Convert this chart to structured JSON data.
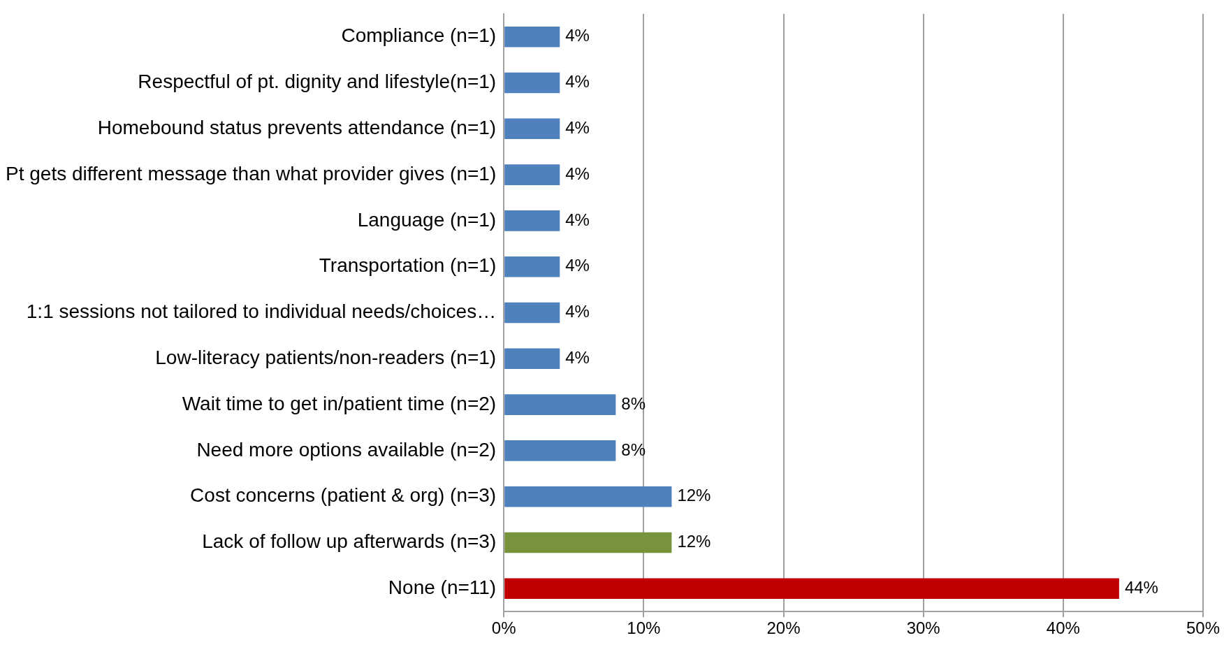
{
  "chart_data": {
    "type": "bar",
    "orientation": "horizontal",
    "categories": [
      "Compliance (n=1)",
      "Respectful of pt. dignity and lifestyle(n=1)",
      "Homebound status prevents attendance (n=1)",
      "Pt gets different message than what provider gives (n=1)",
      "Language (n=1)",
      "Transportation (n=1)",
      "1:1 sessions not tailored to individual needs/choices…",
      "Low-literacy patients/non-readers (n=1)",
      "Wait time to get in/patient time (n=2)",
      "Need more options available (n=2)",
      "Cost concerns (patient & org) (n=3)",
      "Lack of follow up afterwards (n=3)",
      "None (n=11)"
    ],
    "values": [
      4,
      4,
      4,
      4,
      4,
      4,
      4,
      4,
      8,
      8,
      12,
      12,
      44
    ],
    "value_labels": [
      "4%",
      "4%",
      "4%",
      "4%",
      "4%",
      "4%",
      "4%",
      "4%",
      "8%",
      "8%",
      "12%",
      "12%",
      "44%"
    ],
    "colors": [
      "#4f81bd",
      "#4f81bd",
      "#4f81bd",
      "#4f81bd",
      "#4f81bd",
      "#4f81bd",
      "#4f81bd",
      "#4f81bd",
      "#4f81bd",
      "#4f81bd",
      "#4f81bd",
      "#77933c",
      "#c00000"
    ],
    "xlim": [
      0,
      50
    ],
    "xticks": [
      {
        "value": 0,
        "label": "0%"
      },
      {
        "value": 10,
        "label": "10%"
      },
      {
        "value": 20,
        "label": "20%"
      },
      {
        "value": 30,
        "label": "30%"
      },
      {
        "value": 40,
        "label": "40%"
      },
      {
        "value": 50,
        "label": "50%"
      }
    ],
    "grid": "x",
    "legend": false
  }
}
